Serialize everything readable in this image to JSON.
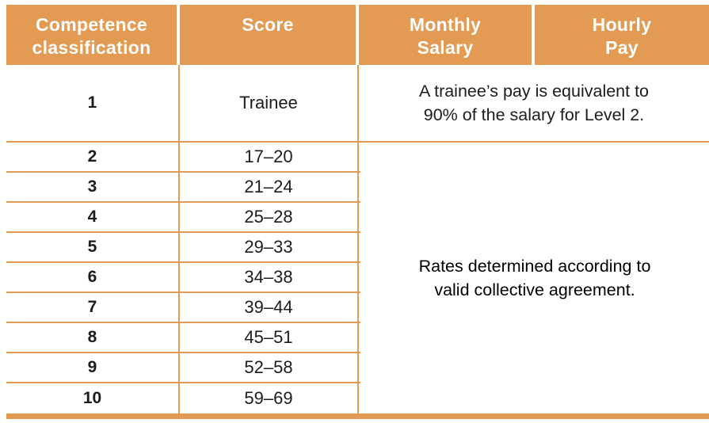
{
  "colors": {
    "accent_orange": "#E39A52",
    "header_text": "#FFFFFF",
    "body_text": "#1C1C1C"
  },
  "table": {
    "headers": [
      {
        "label": "Competence\nclassification"
      },
      {
        "label": "Score"
      },
      {
        "label": "Monthly\nSalary"
      },
      {
        "label": "Hourly\nPay"
      }
    ],
    "trainee_row": {
      "classification": "1",
      "score": "Trainee",
      "note": "A trainee’s pay is equivalent to\n90% of the salary for Level 2."
    },
    "rows": [
      {
        "classification": "2",
        "score": "17–20"
      },
      {
        "classification": "3",
        "score": "21–24"
      },
      {
        "classification": "4",
        "score": "25–28"
      },
      {
        "classification": "5",
        "score": "29–33"
      },
      {
        "classification": "6",
        "score": "34–38"
      },
      {
        "classification": "7",
        "score": "39–44"
      },
      {
        "classification": "8",
        "score": "45–51"
      },
      {
        "classification": "9",
        "score": "52–58"
      },
      {
        "classification": "10",
        "score": "59–69"
      }
    ],
    "rates_note": "Rates determined according to\nvalid collective agreement."
  }
}
